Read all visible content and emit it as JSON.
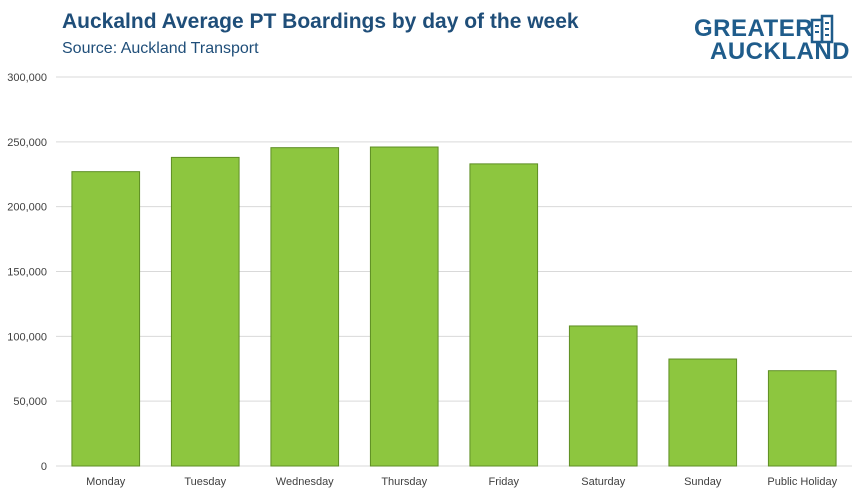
{
  "header": {
    "title": "Auckalnd Average PT Boardings by day of the week",
    "subtitle": "Source: Auckland Transport"
  },
  "logo": {
    "line1": "GREATER",
    "line2": "AUCKLAND",
    "icon": "building-icon",
    "color": "#1f5c8b"
  },
  "colors": {
    "bar_fill": "#8dc63f",
    "bar_stroke": "#5e8e24",
    "grid": "#d9d9d9",
    "title": "#1f4e79"
  },
  "chart_data": {
    "type": "bar",
    "title": "Auckalnd Average PT Boardings by day of the week",
    "subtitle": "Source: Auckland Transport",
    "xlabel": "",
    "ylabel": "",
    "categories": [
      "Monday",
      "Tuesday",
      "Wednesday",
      "Thursday",
      "Friday",
      "Saturday",
      "Sunday",
      "Public Holiday"
    ],
    "values": [
      227000,
      238000,
      245500,
      246000,
      233000,
      108000,
      82500,
      73500
    ],
    "ylim": [
      0,
      300000
    ],
    "yticks": [
      0,
      50000,
      100000,
      150000,
      200000,
      250000,
      300000
    ],
    "ytick_labels": [
      "0",
      "50,000",
      "100,000",
      "150,000",
      "200,000",
      "250,000",
      "300,000"
    ],
    "grid": true,
    "legend": "none"
  }
}
